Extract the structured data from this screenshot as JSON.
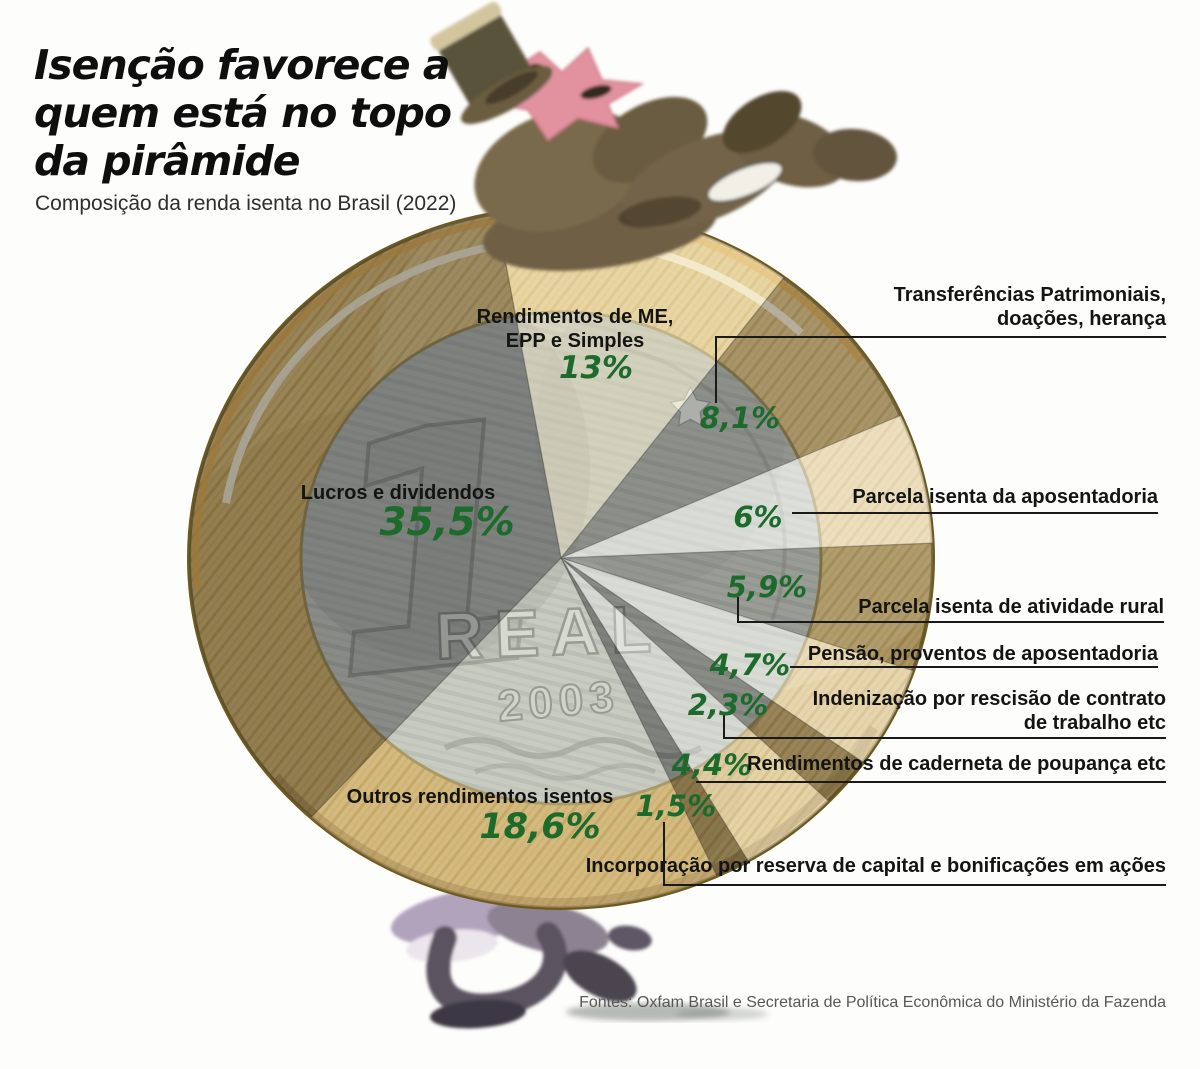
{
  "header": {
    "title": "Isenção favorece a\nquem está no topo\nda pirâmide",
    "subtitle": "Composição da renda isenta no Brasil (2022)"
  },
  "footer": {
    "source": "Fontes: Oxfam Brasil e Secretaria de Política Econômica do Ministério da Fazenda"
  },
  "coin": {
    "numeral": "1",
    "denomination_text": "REAL",
    "year_text": "2003"
  },
  "colors": {
    "percent_green": "#1d6a2d",
    "label_ink": "#141414",
    "leader_line": "#1a1a1a",
    "source_gray": "#585858",
    "coin_gold": "#d4b164",
    "coin_silver": "#b9beb5"
  },
  "chart_data": {
    "type": "pie",
    "title": "Composição da renda isenta no Brasil (2022)",
    "units": "%",
    "direction": "clockwise",
    "start_angle_deg": -10,
    "total": 100,
    "slices": [
      {
        "label": "Rendimentos de ME, EPP e Simples",
        "label_lines": [
          "Rendimentos de ME,",
          "EPP e Simples"
        ],
        "value_pct": 13.0,
        "display": "13%",
        "overlay": "rgba(246,238,206,0.50)"
      },
      {
        "label": "Transferências Patrimoniais, doações, herança",
        "label_lines": [
          "Transferências Patrimoniais,",
          "doações, herança"
        ],
        "value_pct": 8.1,
        "display": "8,1%",
        "overlay": "rgba(85,85,82,0.38)"
      },
      {
        "label": "Parcela isenta da aposentadoria",
        "label_lines": [
          "Parcela isenta da aposentadoria"
        ],
        "value_pct": 6.0,
        "display": "6%",
        "overlay": "rgba(252,252,248,0.55)"
      },
      {
        "label": "Parcela isenta de atividade rural",
        "label_lines": [
          "Parcela isenta de atividade rural"
        ],
        "value_pct": 5.9,
        "display": "5,9%",
        "overlay": "rgba(95,95,92,0.34)"
      },
      {
        "label": "Pensão, proventos de aposentadoria",
        "label_lines": [
          "Pensão, proventos de aposentadoria"
        ],
        "value_pct": 4.7,
        "display": "4,7%",
        "overlay": "rgba(250,250,246,0.50)"
      },
      {
        "label": "Indenização por rescisão de contrato de trabalho etc",
        "label_lines": [
          "Indenização por rescisão de contrato",
          "de trabalho etc"
        ],
        "value_pct": 2.3,
        "display": "2,3%",
        "overlay": "rgba(75,75,72,0.44)"
      },
      {
        "label": "Rendimentos de caderneta de poupança etc",
        "label_lines": [
          "Rendimentos de caderneta de poupança etc"
        ],
        "value_pct": 4.4,
        "display": "4,4%",
        "overlay": "rgba(248,248,242,0.46)"
      },
      {
        "label": "Incorporação por reserva de capital e bonificações em ações",
        "label_lines": [
          "Incorporação por reserva de capital e bonificações em ações"
        ],
        "value_pct": 1.5,
        "display": "1,5%",
        "overlay": "rgba(65,65,62,0.48)"
      },
      {
        "label": "Outros rendimentos isentos",
        "label_lines": [
          "Outros rendimentos isentos"
        ],
        "value_pct": 18.6,
        "display": "18,6%",
        "overlay": "rgba(240,238,222,0.28)"
      },
      {
        "label": "Lucros e dividendos",
        "label_lines": [
          "Lucros e dividendos"
        ],
        "value_pct": 35.5,
        "display": "35,5%",
        "overlay": "rgba(70,70,68,0.42)"
      }
    ]
  }
}
